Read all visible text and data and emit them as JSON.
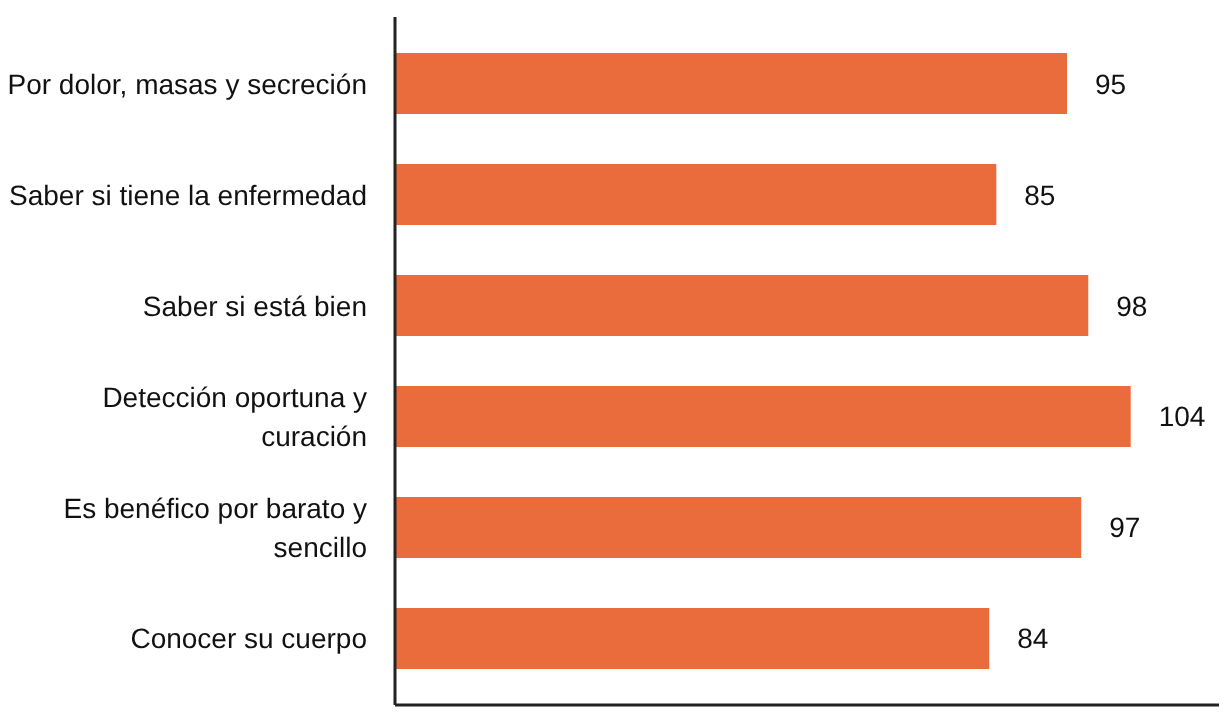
{
  "chart_data": {
    "type": "bar",
    "orientation": "horizontal",
    "categories": [
      "Por dolor, masas y secreción",
      "Saber si tiene la enfermedad",
      "Saber si está bien",
      "Detección oportuna y curación",
      "Es benéfico por barato y sencillo",
      "Conocer su cuerpo"
    ],
    "values": [
      95,
      85,
      98,
      104,
      97,
      84
    ],
    "color": "#ea6b3c",
    "data_labels": true
  }
}
